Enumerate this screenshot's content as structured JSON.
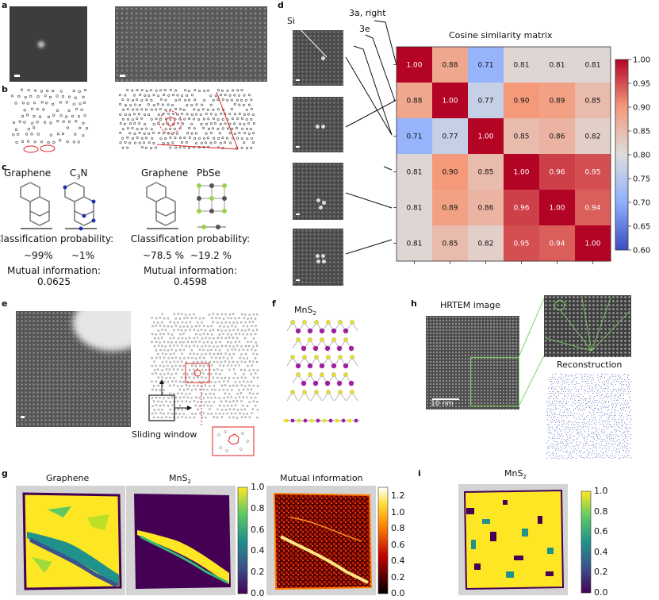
{
  "panels": {
    "a": "a",
    "b": "b",
    "c": "c",
    "d": "d",
    "e": "e",
    "f": "f",
    "g": "g",
    "h": "h",
    "i": "i"
  },
  "panel_c": {
    "left": {
      "label_a": "Graphene",
      "label_b_main": "C",
      "label_b_sub": "3",
      "label_b_end": "N",
      "class_prob_title": "Classification probability:",
      "prob_a": "~99%",
      "prob_b": "~1%",
      "mi_title": "Mutual information:",
      "mi_value": "0.0625"
    },
    "right": {
      "label_a": "Graphene",
      "label_b": "PbSe",
      "class_prob_title": "Classification probability:",
      "prob_a": "~78.5 %",
      "prob_b": "~19.2 %",
      "mi_title": "Mutual information:",
      "mi_value": "0.4598"
    }
  },
  "panel_d": {
    "annot_si": "Si",
    "annot_3a": "3a, right",
    "annot_3e": "3e",
    "title": "Cosine similarity matrix",
    "matrix": [
      [
        "1.00",
        "0.88",
        "0.71",
        "0.81",
        "0.81",
        "0.81"
      ],
      [
        "0.88",
        "1.00",
        "0.77",
        "0.90",
        "0.89",
        "0.85"
      ],
      [
        "0.71",
        "0.77",
        "1.00",
        "0.85",
        "0.86",
        "0.82"
      ],
      [
        "0.81",
        "0.90",
        "0.85",
        "1.00",
        "0.96",
        "0.95"
      ],
      [
        "0.81",
        "0.89",
        "0.86",
        "0.96",
        "1.00",
        "0.94"
      ],
      [
        "0.81",
        "0.85",
        "0.82",
        "0.95",
        "0.94",
        "1.00"
      ]
    ],
    "colorbar_ticks": [
      "1.00",
      "0.95",
      "0.90",
      "0.85",
      "0.80",
      "0.75",
      "0.70",
      "0.65",
      "0.60"
    ]
  },
  "panel_e": {
    "sliding_window": "Sliding window"
  },
  "panel_f": {
    "title_main": "MnS",
    "title_sub": "2"
  },
  "panel_g": {
    "title_graphene": "Graphene",
    "title_mns_main": "MnS",
    "title_mns_sub": "2",
    "title_mi": "Mutual information",
    "cbar1_ticks": [
      "1.0",
      "0.8",
      "0.6",
      "0.4",
      "0.2",
      "0.0"
    ],
    "cbar2_ticks": [
      "1.2",
      "1.0",
      "0.8",
      "0.6",
      "0.4",
      "0.2",
      "0.0"
    ]
  },
  "panel_h": {
    "hrtem_title": "HRTEM image",
    "scalebar": "10 nm",
    "reconstruction": "Reconstruction"
  },
  "panel_i": {
    "title_main": "MnS",
    "title_sub": "2",
    "cbar_ticks": [
      "1.0",
      "0.8",
      "0.6",
      "0.4",
      "0.2",
      "0.0"
    ]
  },
  "colors": {
    "viridis_yellow": "#fde725",
    "viridis_purple": "#440154",
    "coolwarm_red": "#b40426",
    "coolwarm_blue": "#3b4cc0",
    "hot_dark": "#3a0000"
  },
  "chart_data": {
    "type": "heatmap",
    "title": "Cosine similarity matrix",
    "values": [
      [
        1.0,
        0.88,
        0.71,
        0.81,
        0.81,
        0.81
      ],
      [
        0.88,
        1.0,
        0.77,
        0.9,
        0.89,
        0.85
      ],
      [
        0.71,
        0.77,
        1.0,
        0.85,
        0.86,
        0.82
      ],
      [
        0.81,
        0.9,
        0.85,
        1.0,
        0.96,
        0.95
      ],
      [
        0.81,
        0.89,
        0.86,
        0.96,
        1.0,
        0.94
      ],
      [
        0.81,
        0.85,
        0.82,
        0.95,
        0.94,
        1.0
      ]
    ],
    "colorbar_range": [
      0.6,
      1.0
    ],
    "colormap": "coolwarm"
  }
}
